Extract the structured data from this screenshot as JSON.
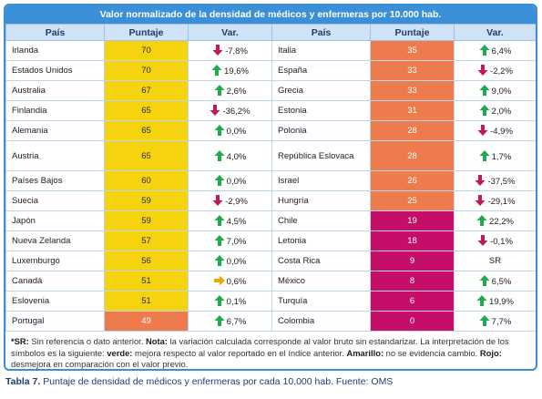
{
  "title": "Valor normalizado de la densidad de médicos y enfermeras por 10.000 hab.",
  "headers": [
    "País",
    "Puntaje",
    "Var.",
    "País",
    "Puntaje",
    "Var."
  ],
  "colors": {
    "yellow": "#f5d30e",
    "orange": "#ee7b4b",
    "magenta": "#c40e68",
    "up": "#1faa4f",
    "down": "#c2185b",
    "flat": "#f0a500"
  },
  "left": [
    {
      "country": "Irlanda",
      "score": "70",
      "var": "-7,8%",
      "dir": "down",
      "band": "yellow"
    },
    {
      "country": "Estados Unidos",
      "score": "70",
      "var": "19,6%",
      "dir": "up",
      "band": "yellow"
    },
    {
      "country": "Australia",
      "score": "67",
      "var": "2,6%",
      "dir": "up",
      "band": "yellow"
    },
    {
      "country": "Finlandia",
      "score": "65",
      "var": "-36,2%",
      "dir": "down",
      "band": "yellow"
    },
    {
      "country": "Alemania",
      "score": "65",
      "var": "0,0%",
      "dir": "up",
      "band": "yellow"
    },
    {
      "country": "Austria",
      "score": "65",
      "var": "4,0%",
      "dir": "up",
      "band": "yellow"
    },
    {
      "country": "Países Bajos",
      "score": "60",
      "var": "0,0%",
      "dir": "up",
      "band": "yellow"
    },
    {
      "country": "Suecia",
      "score": "59",
      "var": "-2,9%",
      "dir": "down",
      "band": "yellow"
    },
    {
      "country": "Japón",
      "score": "59",
      "var": "4,5%",
      "dir": "up",
      "band": "yellow"
    },
    {
      "country": "Nueva Zelanda",
      "score": "57",
      "var": "7,0%",
      "dir": "up",
      "band": "yellow"
    },
    {
      "country": "Luxemburgo",
      "score": "56",
      "var": "0,0%",
      "dir": "up",
      "band": "yellow"
    },
    {
      "country": "Canadá",
      "score": "51",
      "var": "0,6%",
      "dir": "flat",
      "band": "yellow"
    },
    {
      "country": "Eslovenia",
      "score": "51",
      "var": "0,1%",
      "dir": "up",
      "band": "yellow"
    },
    {
      "country": "Portugal",
      "score": "49",
      "var": "6,7%",
      "dir": "up",
      "band": "orange"
    }
  ],
  "right": [
    {
      "country": "Italia",
      "score": "35",
      "var": "6,4%",
      "dir": "up",
      "band": "orange"
    },
    {
      "country": "España",
      "score": "33",
      "var": "-2,2%",
      "dir": "down",
      "band": "orange"
    },
    {
      "country": "Grecia",
      "score": "33",
      "var": "9,0%",
      "dir": "up",
      "band": "orange"
    },
    {
      "country": "Estonia",
      "score": "31",
      "var": "2,0%",
      "dir": "up",
      "band": "orange"
    },
    {
      "country": "Polonia",
      "score": "28",
      "var": "-4,9%",
      "dir": "down",
      "band": "orange"
    },
    {
      "country": "República Eslovaca",
      "score": "28",
      "var": "1,7%",
      "dir": "up",
      "band": "orange"
    },
    {
      "country": "Israel",
      "score": "26",
      "var": "-37,5%",
      "dir": "down",
      "band": "orange"
    },
    {
      "country": "Hungría",
      "score": "25",
      "var": "-29,1%",
      "dir": "down",
      "band": "orange"
    },
    {
      "country": "Chile",
      "score": "19",
      "var": "22,2%",
      "dir": "up",
      "band": "magenta"
    },
    {
      "country": "Letonia",
      "score": "18",
      "var": "-0,1%",
      "dir": "down",
      "band": "magenta"
    },
    {
      "country": "Costa Rica",
      "score": "9",
      "var": "SR",
      "dir": "none",
      "band": "magenta"
    },
    {
      "country": "México",
      "score": "8",
      "var": "6,5%",
      "dir": "up",
      "band": "magenta"
    },
    {
      "country": "Turquía",
      "score": "6",
      "var": "19,9%",
      "dir": "up",
      "band": "magenta"
    },
    {
      "country": "Colombia",
      "score": "0",
      "var": "7,7%",
      "dir": "up",
      "band": "magenta"
    }
  ],
  "notes": {
    "sr_key": "*SR:",
    "sr_text": " Sin referencia o dato anterior. ",
    "nota_key": "Nota:",
    "nota_text": " la variación calculada corresponde al valor bruto sin estandarizar. La interpretación de los símbolos es la siguiente: ",
    "verde_key": "verde:",
    "verde_text": " mejora respecto al valor reportado en el índice anterior. ",
    "amarillo_key": "Amarillo:",
    "amarillo_text": " no se evidencia cambio. ",
    "rojo_key": "Rojo:",
    "rojo_text": " desmejora en comparación con el valor previo."
  },
  "caption": {
    "label": "Tabla 7.",
    "text": " Puntaje de densidad de médicos y enfermeras por cada 10.000 hab. Fuente: OMS"
  }
}
